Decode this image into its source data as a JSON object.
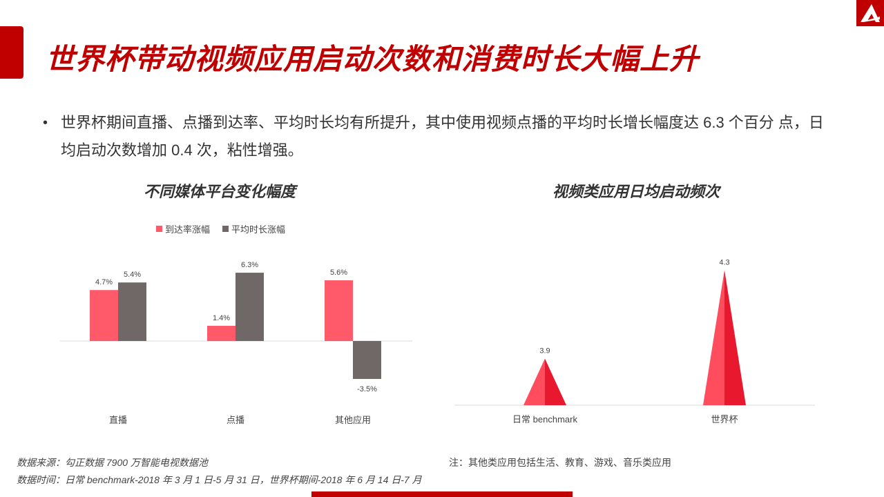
{
  "page": {
    "title": "世界杯带动视频应用启动次数和消费时长大幅上升",
    "bullet": "世界杯期间直播、点播到达率、平均时长均有所提升，其中使用视频点播的平均时长增长幅度达 6.3 个百分 点，日均启动次数增加 0.4 次，粘性增强。",
    "colors": {
      "accent": "#c00000",
      "red_bar": "#ff5a69",
      "gray_bar": "#6f6866",
      "pyramid_light": "#ff4d5e",
      "pyramid_dark": "#e8182e"
    }
  },
  "footer": {
    "source": "数据来源：勾正数据  7900 万智能电视数据池",
    "time": "数据时间：日常 benchmark-2018 年 3 月 1 日-5 月 31 日，世界杯期间-2018 年 6 月 14 日-7 月",
    "note": "注：其他类应用包括生活、教育、游戏、音乐类应用"
  },
  "chart_data": [
    {
      "type": "bar",
      "title": "不同媒体平台变化幅度",
      "categories": [
        "直播",
        "点播",
        "其他应用"
      ],
      "series": [
        {
          "name": "到达率涨幅",
          "values": [
            4.7,
            1.4,
            5.6
          ],
          "labels": [
            "4.7%",
            "1.4%",
            "5.6%"
          ],
          "color": "#ff5a69"
        },
        {
          "name": "平均时长涨幅",
          "values": [
            5.4,
            6.3,
            -3.5
          ],
          "labels": [
            "5.4%",
            "6.3%",
            "-3.5%"
          ],
          "color": "#6f6866"
        }
      ],
      "unit": "%",
      "grid": false,
      "legend": "top"
    },
    {
      "type": "bar",
      "style": "pyramid",
      "title": "视频类应用日均启动频次",
      "categories": [
        "日常 benchmark",
        "世界杯"
      ],
      "values": [
        3.9,
        4.3
      ],
      "labels": [
        "3.9",
        "4.3"
      ],
      "grid": false
    }
  ]
}
